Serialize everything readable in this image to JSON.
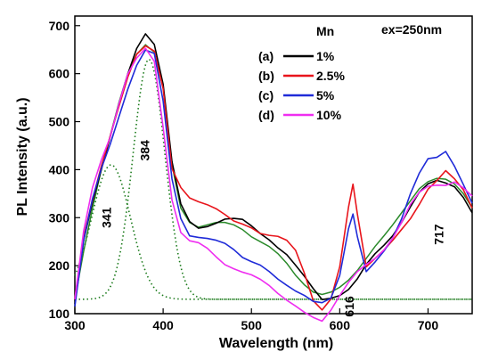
{
  "chart_data": {
    "type": "line",
    "xlabel": "Wavelength (nm)",
    "ylabel": "PL Intensity (a.u.)",
    "xlim": [
      300,
      750
    ],
    "ylim": [
      100,
      720
    ],
    "xticks": [
      300,
      400,
      500,
      600,
      700
    ],
    "yticks": [
      100,
      200,
      300,
      400,
      500,
      600,
      700
    ],
    "excitation_label": "ex=250nm",
    "legend": {
      "title": "Mn",
      "placement": "top-right",
      "entries": [
        {
          "letter": "(a)",
          "label": "1%",
          "color": "#000000"
        },
        {
          "letter": "(b)",
          "label": "2.5%",
          "color": "#e8141b"
        },
        {
          "letter": "(c)",
          "label": "5%",
          "color": "#1f2bd8"
        },
        {
          "letter": "(d)",
          "label": "10%",
          "color": "#ef2ef0"
        }
      ]
    },
    "peak_labels": [
      {
        "text": "341",
        "x": 341,
        "y": 300
      },
      {
        "text": "384",
        "x": 384,
        "y": 440
      },
      {
        "text": "616",
        "x": 616,
        "y": 115
      },
      {
        "text": "717",
        "x": 717,
        "y": 265
      }
    ],
    "series": [
      {
        "label": "1%",
        "color": "#000000",
        "x": [
          300,
          310,
          320,
          330,
          340,
          350,
          360,
          370,
          380,
          390,
          400,
          410,
          420,
          430,
          440,
          450,
          460,
          470,
          480,
          490,
          500,
          510,
          520,
          530,
          540,
          550,
          560,
          570,
          580,
          590,
          600,
          610,
          620,
          630,
          640,
          650,
          660,
          670,
          680,
          690,
          700,
          710,
          720,
          730,
          740,
          750
        ],
        "y": [
          120,
          250,
          330,
          400,
          470,
          540,
          600,
          650,
          680,
          660,
          580,
          420,
          330,
          290,
          275,
          280,
          290,
          300,
          300,
          295,
          280,
          265,
          255,
          240,
          225,
          200,
          175,
          150,
          130,
          135,
          140,
          150,
          170,
          200,
          225,
          245,
          265,
          290,
          320,
          350,
          370,
          380,
          375,
          365,
          340,
          310
        ]
      },
      {
        "label": "2.5%",
        "color": "#e8141b",
        "x": [
          300,
          310,
          320,
          330,
          340,
          350,
          360,
          370,
          380,
          390,
          400,
          410,
          420,
          430,
          440,
          450,
          460,
          470,
          480,
          490,
          500,
          510,
          520,
          530,
          540,
          550,
          560,
          570,
          580,
          590,
          600,
          610,
          615,
          620,
          630,
          640,
          650,
          660,
          670,
          680,
          690,
          700,
          710,
          720,
          730,
          740,
          750
        ],
        "y": [
          130,
          260,
          340,
          410,
          470,
          530,
          590,
          640,
          660,
          650,
          570,
          400,
          360,
          340,
          335,
          330,
          320,
          305,
          290,
          285,
          280,
          270,
          265,
          260,
          250,
          230,
          185,
          130,
          110,
          130,
          195,
          320,
          370,
          310,
          200,
          215,
          230,
          250,
          275,
          300,
          330,
          360,
          375,
          395,
          380,
          360,
          320
        ]
      },
      {
        "label": "5%",
        "color": "#1f2bd8",
        "x": [
          300,
          310,
          320,
          330,
          340,
          350,
          360,
          370,
          380,
          390,
          400,
          410,
          420,
          430,
          440,
          450,
          460,
          470,
          480,
          490,
          500,
          510,
          520,
          530,
          540,
          550,
          560,
          570,
          580,
          590,
          600,
          610,
          615,
          620,
          630,
          640,
          650,
          660,
          670,
          680,
          690,
          700,
          710,
          720,
          730,
          740,
          750
        ],
        "y": [
          115,
          255,
          340,
          400,
          450,
          510,
          570,
          620,
          650,
          640,
          540,
          380,
          300,
          265,
          260,
          255,
          250,
          245,
          235,
          220,
          210,
          200,
          185,
          170,
          160,
          150,
          140,
          125,
          120,
          130,
          180,
          280,
          310,
          260,
          185,
          205,
          230,
          260,
          300,
          350,
          390,
          420,
          425,
          440,
          410,
          370,
          330
        ]
      },
      {
        "label": "10%",
        "color": "#ef2ef0",
        "x": [
          300,
          310,
          320,
          330,
          340,
          350,
          360,
          370,
          380,
          390,
          400,
          410,
          420,
          430,
          440,
          450,
          460,
          470,
          480,
          490,
          500,
          510,
          520,
          530,
          540,
          550,
          560,
          570,
          580,
          590,
          600,
          610,
          620,
          630,
          640,
          650,
          660,
          670,
          680,
          690,
          700,
          710,
          720,
          730,
          740,
          750
        ],
        "y": [
          130,
          270,
          360,
          420,
          470,
          540,
          600,
          630,
          650,
          625,
          490,
          340,
          270,
          250,
          245,
          235,
          220,
          205,
          195,
          185,
          178,
          170,
          160,
          145,
          130,
          115,
          100,
          90,
          85,
          110,
          140,
          165,
          185,
          200,
          215,
          235,
          260,
          290,
          325,
          350,
          365,
          370,
          370,
          375,
          360,
          345
        ]
      }
    ],
    "fit_curves": [
      {
        "kind": "fit",
        "color": "#2a8a2a",
        "x": [
          300,
          310,
          320,
          330,
          340,
          350,
          360,
          370,
          380,
          390,
          400,
          410,
          420,
          430,
          440,
          450,
          460,
          470,
          480,
          490,
          500,
          510,
          520,
          530,
          540,
          550,
          560,
          570,
          580,
          590,
          600,
          610,
          620,
          630,
          640,
          650,
          660,
          670,
          680,
          690,
          700,
          710,
          720,
          730,
          740,
          750
        ],
        "y": [
          130,
          230,
          320,
          400,
          470,
          540,
          600,
          640,
          660,
          645,
          570,
          410,
          320,
          290,
          280,
          285,
          290,
          290,
          285,
          275,
          260,
          250,
          240,
          225,
          205,
          180,
          160,
          145,
          140,
          145,
          155,
          170,
          190,
          215,
          240,
          262,
          285,
          310,
          335,
          360,
          375,
          382,
          380,
          370,
          350,
          320
        ]
      },
      {
        "kind": "component",
        "color": "#1a7a1a",
        "center": 341,
        "sigma": 22,
        "amplitude": 280,
        "baseline": 130
      },
      {
        "kind": "component",
        "color": "#1a7a1a",
        "center": 384,
        "sigma": 18,
        "amplitude": 500,
        "baseline": 130
      }
    ]
  }
}
